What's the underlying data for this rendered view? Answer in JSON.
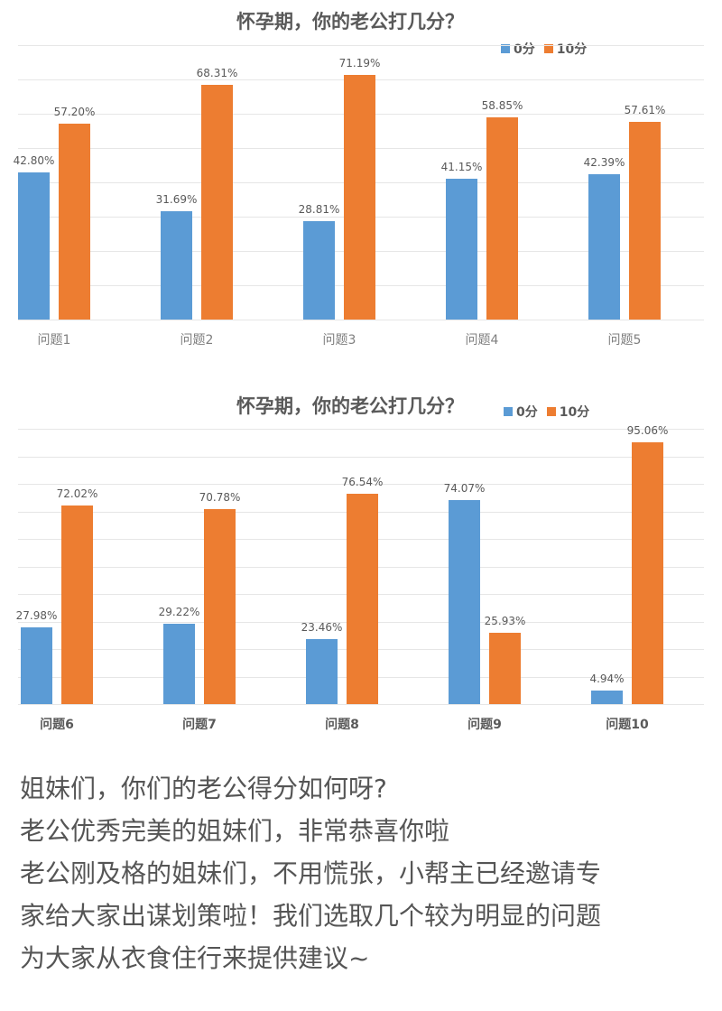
{
  "colors": {
    "zero": "#5b9bd5",
    "ten": "#ed7d31",
    "grid": "#e6e6e6",
    "text": "#595959"
  },
  "chart_data": [
    {
      "type": "bar",
      "title": "怀孕期，你的老公打几分？",
      "legend": [
        "0分",
        "10分"
      ],
      "legend_position": "top-right",
      "grid": true,
      "ylim": [
        0,
        80
      ],
      "categories": [
        "问题1",
        "问题2",
        "问题3",
        "问题4",
        "问题5"
      ],
      "series": [
        {
          "name": "0分",
          "values": [
            42.8,
            31.69,
            28.81,
            41.15,
            42.39
          ],
          "labels": [
            "42.80%",
            "31.69%",
            "28.81%",
            "41.15%",
            "42.39%"
          ]
        },
        {
          "name": "10分",
          "values": [
            57.2,
            68.31,
            71.19,
            58.85,
            57.61
          ],
          "labels": [
            "57.20%",
            "68.31%",
            "71.19%",
            "58.85%",
            "57.61%"
          ]
        }
      ],
      "xlabel": "",
      "ylabel": ""
    },
    {
      "type": "bar",
      "title": "怀孕期，你的老公打几分？",
      "legend": [
        "0分",
        "10分"
      ],
      "legend_position": "top-right",
      "grid": true,
      "ylim": [
        0,
        100
      ],
      "categories": [
        "问题6",
        "问题7",
        "问题8",
        "问题9",
        "问题10"
      ],
      "series": [
        {
          "name": "0分",
          "values": [
            27.98,
            29.22,
            23.46,
            74.07,
            4.94
          ],
          "labels": [
            "27.98%",
            "29.22%",
            "23.46%",
            "74.07%",
            "4.94%"
          ]
        },
        {
          "name": "10分",
          "values": [
            72.02,
            70.78,
            76.54,
            25.93,
            95.06
          ],
          "labels": [
            "72.02%",
            "70.78%",
            "76.54%",
            "25.93%",
            "95.06%"
          ]
        }
      ],
      "xlabel": "",
      "ylabel": ""
    }
  ],
  "article": {
    "lines": [
      "姐妹们，你们的老公得分如何呀?",
      "老公优秀完美的姐妹们，非常恭喜你啦",
      "老公刚及格的姐妹们，不用慌张，小帮主已经邀请专",
      "家给大家出谋划策啦！我们选取几个较为明显的问题",
      "为大家从衣食住行来提供建议~"
    ]
  }
}
